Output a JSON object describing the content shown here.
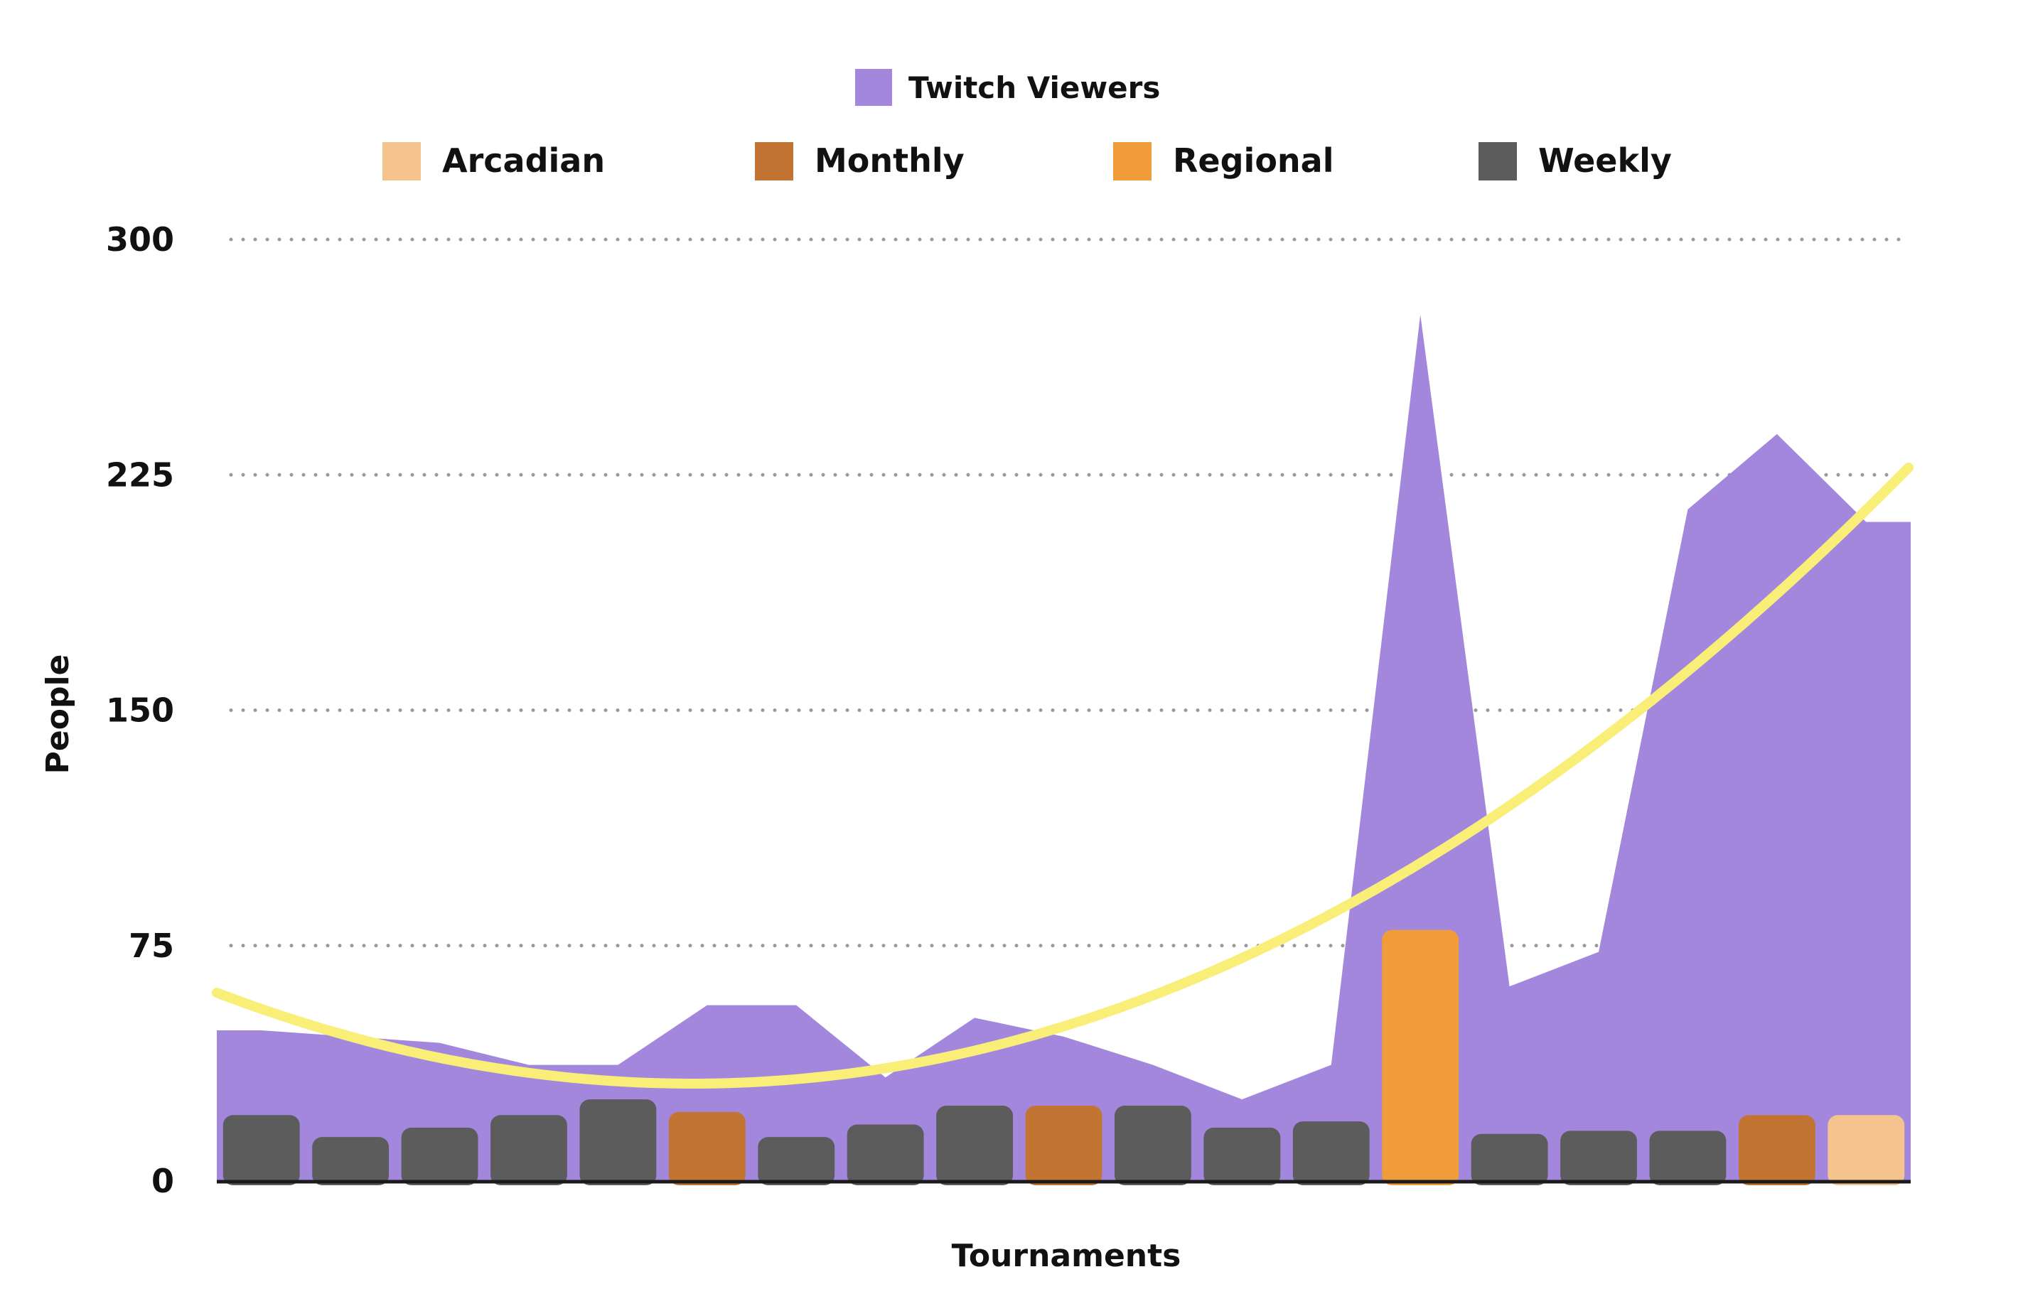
{
  "chart_data": {
    "type": "bar",
    "xlabel": "Tournaments",
    "ylabel": "People",
    "ylim": [
      0,
      300
    ],
    "yticks": [
      0,
      75,
      150,
      225,
      300
    ],
    "grid": true,
    "legend_position": "top",
    "area_series": {
      "name": "Twitch Viewers",
      "color": "#a387dd",
      "values": [
        48,
        46,
        44,
        37,
        37,
        56,
        56,
        33,
        52,
        46,
        37,
        26,
        37,
        276,
        62,
        73,
        214,
        238,
        210
      ]
    },
    "bars": {
      "values": [
        21,
        14,
        17,
        21,
        26,
        22,
        14,
        18,
        24,
        24,
        24,
        17,
        19,
        80,
        15,
        16,
        16,
        21,
        21
      ],
      "types": [
        "Weekly",
        "Weekly",
        "Weekly",
        "Weekly",
        "Weekly",
        "Monthly",
        "Weekly",
        "Weekly",
        "Weekly",
        "Monthly",
        "Weekly",
        "Weekly",
        "Weekly",
        "Regional",
        "Weekly",
        "Weekly",
        "Weekly",
        "Monthly",
        "Arcadian"
      ]
    },
    "bar_categories": [
      {
        "name": "Arcadian",
        "color": "#f5c48e"
      },
      {
        "name": "Monthly",
        "color": "#c27432"
      },
      {
        "name": "Regional",
        "color": "#f09c3a"
      },
      {
        "name": "Weekly",
        "color": "#5c5c5c"
      }
    ],
    "trendline": {
      "color": "#f8ee78",
      "kind": "polynomial",
      "start_value": 60,
      "end_value": 228
    }
  }
}
